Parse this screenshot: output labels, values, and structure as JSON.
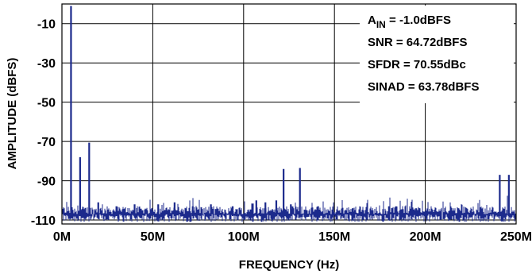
{
  "chart_data": {
    "type": "line",
    "xlabel": "FREQUENCY (Hz)",
    "ylabel": "AMPLITUDE (dBFS)",
    "xlim": [
      0,
      250
    ],
    "ylim": [
      -112,
      0
    ],
    "x_unit": "MHz",
    "x_ticks": [
      {
        "value": 0,
        "label": "0M"
      },
      {
        "value": 50,
        "label": "50M"
      },
      {
        "value": 100,
        "label": "100M"
      },
      {
        "value": 150,
        "label": "150M"
      },
      {
        "value": 200,
        "label": "200M"
      },
      {
        "value": 250,
        "label": "250M"
      }
    ],
    "y_ticks": [
      {
        "value": -10,
        "label": "-10"
      },
      {
        "value": -30,
        "label": "-30"
      },
      {
        "value": -50,
        "label": "-50"
      },
      {
        "value": -70,
        "label": "-70"
      },
      {
        "value": -90,
        "label": "-90"
      },
      {
        "value": -110,
        "label": "-110"
      }
    ],
    "grid": true,
    "line_color": "#1c2a8c",
    "noise_floor_dbfs": -108,
    "spurs": [
      {
        "x": 5,
        "y": -1.0
      },
      {
        "x": 10,
        "y": -78
      },
      {
        "x": 15,
        "y": -70.6
      },
      {
        "x": 20,
        "y": -101
      },
      {
        "x": 30,
        "y": -103
      },
      {
        "x": 40,
        "y": -102
      },
      {
        "x": 53,
        "y": -102
      },
      {
        "x": 62,
        "y": -101
      },
      {
        "x": 72,
        "y": -103
      },
      {
        "x": 82,
        "y": -102
      },
      {
        "x": 94,
        "y": -103
      },
      {
        "x": 107,
        "y": -100
      },
      {
        "x": 112,
        "y": -101
      },
      {
        "x": 118,
        "y": -100
      },
      {
        "x": 122,
        "y": -84
      },
      {
        "x": 126,
        "y": -102
      },
      {
        "x": 131,
        "y": -83.5
      },
      {
        "x": 141,
        "y": -103
      },
      {
        "x": 160,
        "y": -104
      },
      {
        "x": 180,
        "y": -103
      },
      {
        "x": 195,
        "y": -104
      },
      {
        "x": 241,
        "y": -87
      },
      {
        "x": 246,
        "y": -87
      }
    ],
    "annotations": [
      {
        "main": "A",
        "sub": "IN",
        "rest": " = -1.0dBFS"
      },
      {
        "main": "SNR = 64.72dBFS"
      },
      {
        "main": "SFDR = 70.55dBc"
      },
      {
        "main": "SINAD = 63.78dBFS"
      }
    ]
  }
}
